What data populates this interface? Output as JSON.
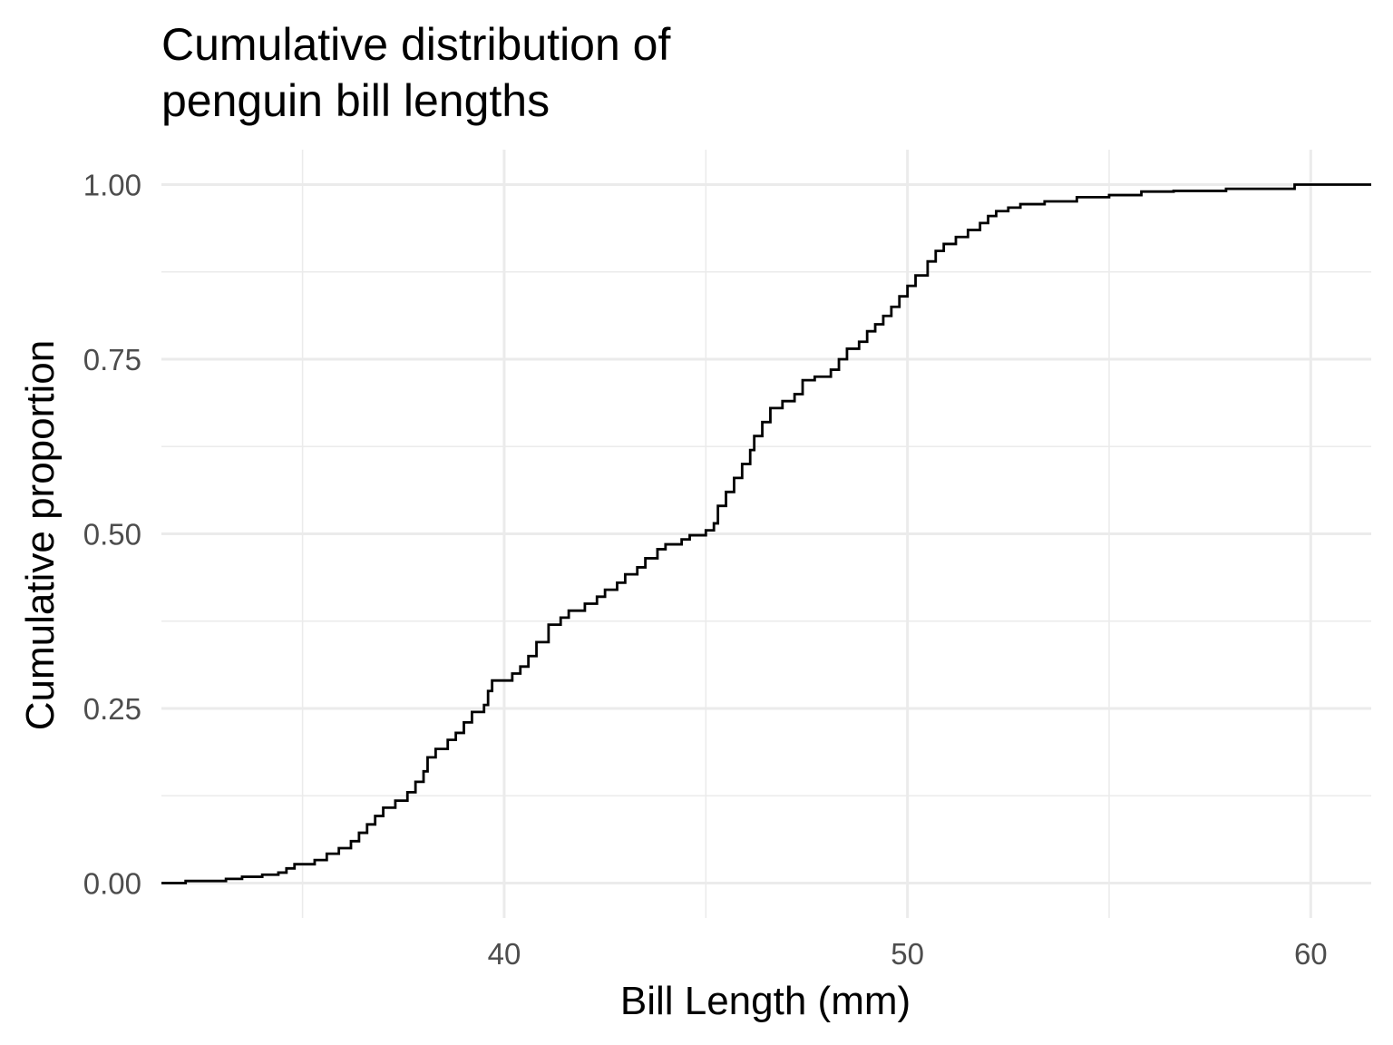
{
  "chart_data": {
    "type": "line",
    "subtype": "ecdf-step",
    "title_lines": [
      "Cumulative distribution of",
      "penguin bill lengths"
    ],
    "xlabel": "Bill Length (mm)",
    "ylabel": "Cumulative proportion",
    "xlim": [
      31.5,
      61.5
    ],
    "ylim": [
      -0.05,
      1.05
    ],
    "x_ticks": [
      40,
      50,
      60
    ],
    "x_tick_labels": [
      "40",
      "50",
      "60"
    ],
    "x_minor_ticks": [
      35,
      45,
      55
    ],
    "y_ticks": [
      0,
      0.25,
      0.5,
      0.75,
      1
    ],
    "y_tick_labels": [
      "0.00",
      "0.25",
      "0.50",
      "0.75",
      "1.00"
    ],
    "y_minor_ticks": [
      0.125,
      0.375,
      0.625,
      0.875
    ],
    "grid": true,
    "legend": "none",
    "line_color": "#000000",
    "grid_color": "#ebebeb",
    "series": [
      {
        "points": [
          [
            31.5,
            0.0
          ],
          [
            32.1,
            0.003
          ],
          [
            33.1,
            0.006
          ],
          [
            33.5,
            0.009
          ],
          [
            34.0,
            0.012
          ],
          [
            34.4,
            0.015
          ],
          [
            34.6,
            0.021
          ],
          [
            34.8,
            0.027
          ],
          [
            35.3,
            0.033
          ],
          [
            35.6,
            0.042
          ],
          [
            35.9,
            0.05
          ],
          [
            36.2,
            0.06
          ],
          [
            36.4,
            0.072
          ],
          [
            36.6,
            0.084
          ],
          [
            36.8,
            0.096
          ],
          [
            37.0,
            0.108
          ],
          [
            37.3,
            0.118
          ],
          [
            37.6,
            0.13
          ],
          [
            37.8,
            0.145
          ],
          [
            38.0,
            0.16
          ],
          [
            38.1,
            0.18
          ],
          [
            38.3,
            0.192
          ],
          [
            38.6,
            0.205
          ],
          [
            38.8,
            0.215
          ],
          [
            39.0,
            0.23
          ],
          [
            39.2,
            0.245
          ],
          [
            39.5,
            0.255
          ],
          [
            39.6,
            0.275
          ],
          [
            39.7,
            0.29
          ],
          [
            40.2,
            0.3
          ],
          [
            40.4,
            0.31
          ],
          [
            40.6,
            0.325
          ],
          [
            40.8,
            0.345
          ],
          [
            41.1,
            0.37
          ],
          [
            41.4,
            0.38
          ],
          [
            41.6,
            0.39
          ],
          [
            42.0,
            0.4
          ],
          [
            42.3,
            0.41
          ],
          [
            42.5,
            0.42
          ],
          [
            42.8,
            0.43
          ],
          [
            43.0,
            0.442
          ],
          [
            43.3,
            0.452
          ],
          [
            43.5,
            0.465
          ],
          [
            43.8,
            0.478
          ],
          [
            44.0,
            0.485
          ],
          [
            44.4,
            0.492
          ],
          [
            44.6,
            0.498
          ],
          [
            45.0,
            0.505
          ],
          [
            45.2,
            0.515
          ],
          [
            45.3,
            0.54
          ],
          [
            45.5,
            0.56
          ],
          [
            45.7,
            0.58
          ],
          [
            45.9,
            0.6
          ],
          [
            46.1,
            0.62
          ],
          [
            46.2,
            0.64
          ],
          [
            46.4,
            0.66
          ],
          [
            46.6,
            0.68
          ],
          [
            46.9,
            0.69
          ],
          [
            47.2,
            0.7
          ],
          [
            47.4,
            0.72
          ],
          [
            47.7,
            0.725
          ],
          [
            48.1,
            0.735
          ],
          [
            48.3,
            0.75
          ],
          [
            48.5,
            0.765
          ],
          [
            48.8,
            0.775
          ],
          [
            49.0,
            0.79
          ],
          [
            49.2,
            0.8
          ],
          [
            49.4,
            0.812
          ],
          [
            49.6,
            0.825
          ],
          [
            49.8,
            0.84
          ],
          [
            50.0,
            0.855
          ],
          [
            50.2,
            0.87
          ],
          [
            50.5,
            0.89
          ],
          [
            50.7,
            0.905
          ],
          [
            50.9,
            0.915
          ],
          [
            51.2,
            0.925
          ],
          [
            51.5,
            0.935
          ],
          [
            51.8,
            0.945
          ],
          [
            52.0,
            0.955
          ],
          [
            52.2,
            0.962
          ],
          [
            52.5,
            0.967
          ],
          [
            52.8,
            0.972
          ],
          [
            53.4,
            0.976
          ],
          [
            54.2,
            0.982
          ],
          [
            55.0,
            0.985
          ],
          [
            55.8,
            0.99
          ],
          [
            56.6,
            0.991
          ],
          [
            57.9,
            0.994
          ],
          [
            59.6,
            1.0
          ],
          [
            61.5,
            1.0
          ]
        ]
      }
    ]
  }
}
